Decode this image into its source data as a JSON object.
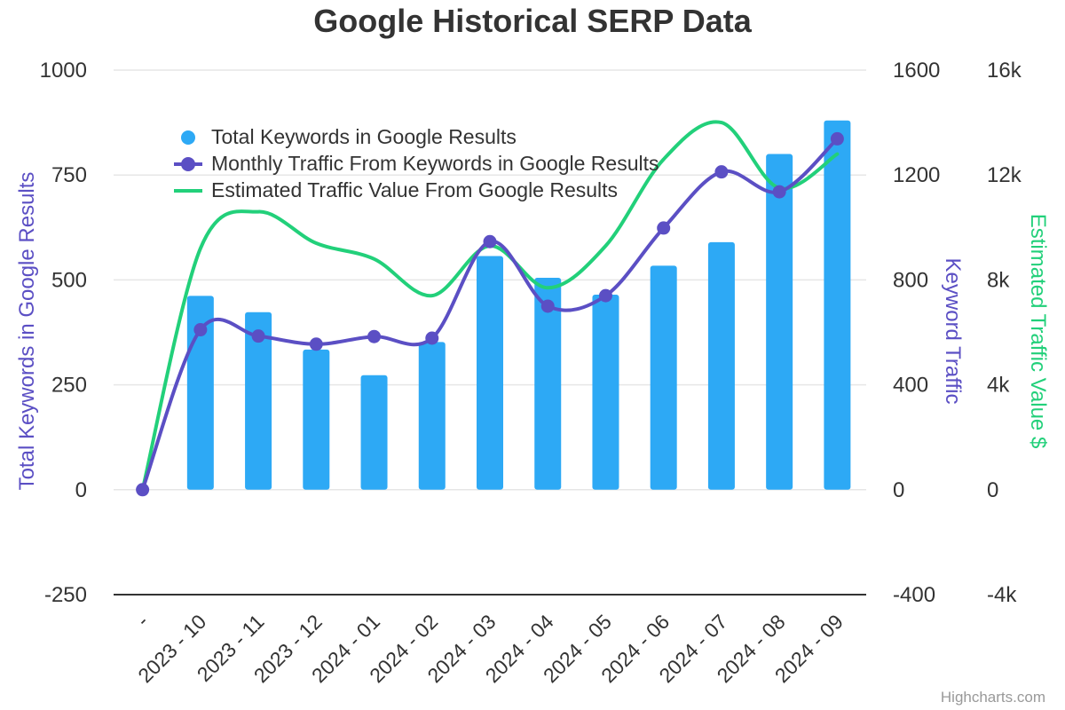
{
  "colors": {
    "bars": "#2da9f5",
    "traffic": "#5b4fc4",
    "value": "#22d07a",
    "grid": "#e6e6e6",
    "axis": "#333333",
    "text": "#333333",
    "credits": "#999999"
  },
  "chart_data": {
    "type": "bar",
    "title": "Google Historical SERP Data",
    "categories": [
      "-",
      "2023 - 10",
      "2023 - 11",
      "2023 - 12",
      "2024 - 01",
      "2024 - 02",
      "2024 - 03",
      "2024 - 04",
      "2024 - 05",
      "2024 - 06",
      "2024 - 07",
      "2024 - 08",
      "2024 - 09"
    ],
    "axes": {
      "left": {
        "title": "Total Keywords in Google Results",
        "min": -250,
        "max": 1000,
        "ticks": [
          "-250",
          "0",
          "250",
          "500",
          "750",
          "1000"
        ],
        "tick_values": [
          -250,
          0,
          250,
          500,
          750,
          1000
        ]
      },
      "right1": {
        "title": "Keyword Traffic",
        "min": -400,
        "max": 1600,
        "ticks": [
          "-400",
          "0",
          "400",
          "800",
          "1200",
          "1600"
        ]
      },
      "right2": {
        "title": "Estimated Traffic Value $",
        "min": -4000,
        "max": 16000,
        "ticks": [
          "-4k",
          "0",
          "4k",
          "8k",
          "12k",
          "16k"
        ]
      }
    },
    "series": [
      {
        "name": "Total Keywords in Google Results",
        "type": "column",
        "axis": "left",
        "values": [
          0,
          462,
          423,
          334,
          273,
          352,
          557,
          505,
          465,
          534,
          590,
          800,
          880
        ]
      },
      {
        "name": "Monthly Traffic From Keywords in Google Results",
        "type": "spline-markers",
        "axis": "right1",
        "values": [
          0,
          610,
          586,
          555,
          584,
          578,
          946,
          700,
          740,
          998,
          1212,
          1136,
          1338
        ]
      },
      {
        "name": "Estimated Traffic Value From Google Results",
        "type": "spline",
        "axis": "right2",
        "values": [
          0,
          9200,
          10600,
          9400,
          8800,
          7400,
          9300,
          7700,
          9300,
          12600,
          14000,
          11500,
          12800
        ]
      }
    ],
    "legend_placement": "top-left-inside",
    "grid": true
  },
  "credits": "Highcharts.com"
}
